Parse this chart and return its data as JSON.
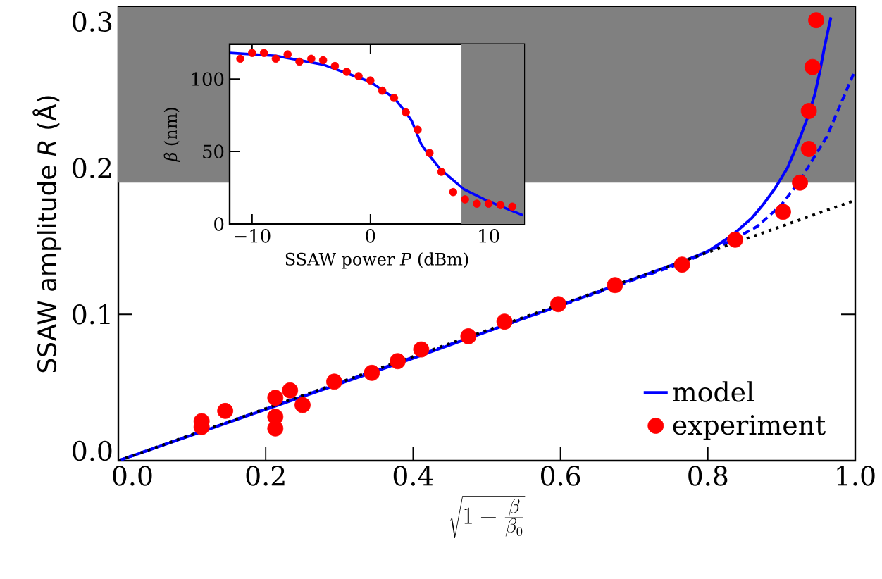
{
  "chart_data": [
    {
      "type": "line",
      "xlabel": "\\sqrt{1-\\frac{\\beta}{\\beta_0}}",
      "ylabel": "SSAW amplitude *R* (Å)",
      "xlim": [
        0,
        1
      ],
      "ylim": [
        0,
        0.31
      ],
      "xticks": [
        {
          "value": 0,
          "label": "0.0"
        },
        {
          "value": 0.2,
          "label": "0.2"
        },
        {
          "value": 0.4,
          "label": "0.4"
        },
        {
          "value": 0.6,
          "label": "0.6"
        },
        {
          "value": 0.8,
          "label": "0.8"
        },
        {
          "value": 1,
          "label": "1.0"
        }
      ],
      "yticks": [
        {
          "value": 0,
          "label": "0.0"
        },
        {
          "value": 0.1,
          "label": "0.1"
        },
        {
          "value": 0.2,
          "label": "0.2"
        },
        {
          "value": 0.3,
          "label": "0.3"
        }
      ],
      "legend": "bottom right",
      "bands": [
        {
          "axis": "y",
          "from": 0.19,
          "to": 0.31,
          "color": "#808080"
        }
      ],
      "series": [
        {
          "name": "model",
          "line_style": "solid",
          "color": "#0000ff",
          "x": [
            0,
            0.4,
            0.77,
            0.8,
            0.833,
            0.86,
            0.875,
            0.891,
            0.908,
            0.923,
            0.935,
            0.945,
            0.952,
            0.958,
            0.967
          ],
          "values": [
            0,
            0.07,
            0.137,
            0.143,
            0.154,
            0.166,
            0.175,
            0.186,
            0.2,
            0.218,
            0.234,
            0.25,
            0.266,
            0.282,
            0.303
          ]
        },
        {
          "line_style": "dashed",
          "color": "#0000ff",
          "x": [
            0,
            0.77,
            0.83,
            0.867,
            0.9,
            0.923,
            0.961,
            1.0
          ],
          "values": [
            0,
            0.136,
            0.15,
            0.16,
            0.175,
            0.19,
            0.221,
            0.267
          ]
        },
        {
          "line_style": "dotted",
          "color": "#000000",
          "x": [
            0,
            1.0
          ],
          "values": [
            0,
            0.178
          ]
        },
        {
          "name": "experiment",
          "type": "scatter",
          "marker": "circle",
          "color": "#ff0000",
          "x": [
            0.113,
            0.113,
            0.145,
            0.213,
            0.213,
            0.213,
            0.233,
            0.25,
            0.293,
            0.344,
            0.379,
            0.411,
            0.475,
            0.524,
            0.597,
            0.674,
            0.765,
            0.837,
            0.902,
            0.925,
            0.937,
            0.937,
            0.942,
            0.947
          ],
          "values": [
            0.027,
            0.023,
            0.034,
            0.043,
            0.03,
            0.022,
            0.048,
            0.038,
            0.054,
            0.06,
            0.068,
            0.076,
            0.085,
            0.095,
            0.107,
            0.12,
            0.134,
            0.151,
            0.17,
            0.19,
            0.213,
            0.239,
            0.269,
            0.301
          ]
        }
      ]
    },
    {
      "type": "scatter",
      "xlabel": "SSAW power *P* (dBm)",
      "ylabel": "*β* (nm)",
      "xlim": [
        -11.9,
        13
      ],
      "ylim": [
        0,
        124
      ],
      "xticks": [
        {
          "value": -10,
          "label": "−10"
        },
        0,
        10
      ],
      "yticks": [
        0,
        50,
        100
      ],
      "bands": [
        {
          "axis": "x",
          "from": 7.7,
          "to": 13,
          "color": "#808080"
        }
      ],
      "series": [
        {
          "type": "line",
          "line_style": "solid",
          "color": "#0000ff",
          "x": [
            -11.9,
            -8,
            -4,
            0,
            2,
            3,
            3.5,
            4.3,
            4.9,
            5.9,
            7.9,
            9.9,
            12.9
          ],
          "values": [
            118,
            116,
            110,
            98,
            87,
            77,
            71,
            55,
            48,
            38,
            24,
            16,
            6
          ]
        },
        {
          "marker": "circle",
          "color": "#ff0000",
          "x": [
            -11,
            -10,
            -9,
            -8,
            -7,
            -6,
            -5,
            -4,
            -3,
            -2,
            -1,
            0,
            1,
            2,
            3,
            4,
            5,
            6,
            7,
            8,
            9,
            10,
            11,
            12
          ],
          "values": [
            114,
            118,
            118,
            114,
            117,
            112,
            114,
            113,
            109,
            105,
            102,
            99,
            92,
            87,
            77,
            65,
            49,
            36,
            22,
            17,
            14,
            14,
            13,
            12
          ]
        }
      ]
    }
  ]
}
